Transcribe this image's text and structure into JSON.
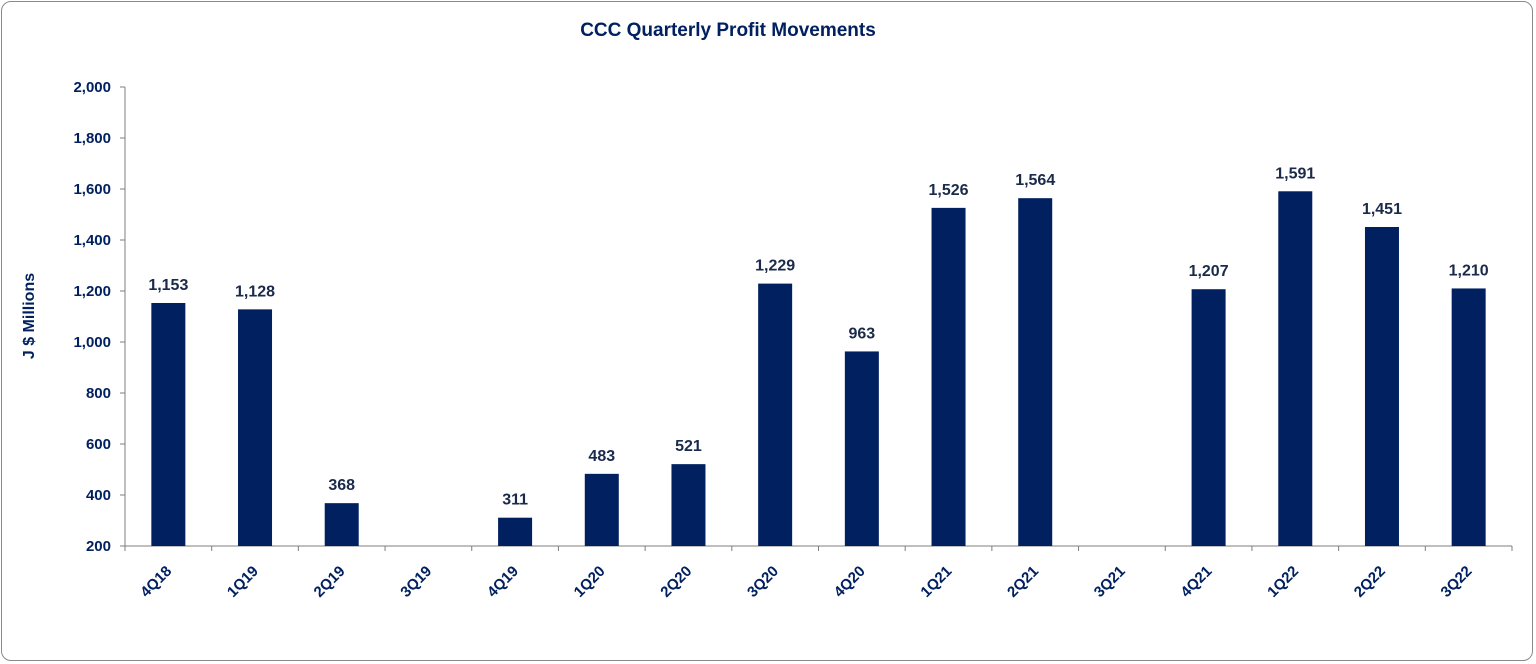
{
  "chart_data": {
    "type": "bar",
    "title": "CCC Quarterly Profit Movements",
    "xlabel": "",
    "ylabel": "J $ Millions",
    "ylim": [
      200,
      2000
    ],
    "yticks": [
      "2,000",
      "1,800",
      "1,600",
      "1,400",
      "1,200",
      "1,000",
      "800",
      "600",
      "400",
      "200"
    ],
    "ytick_values": [
      2000,
      1800,
      1600,
      1400,
      1200,
      1000,
      800,
      600,
      400,
      200
    ],
    "categories": [
      "4Q18",
      "1Q19",
      "2Q19",
      "3Q19",
      "4Q19",
      "1Q20",
      "2Q20",
      "3Q20",
      "4Q20",
      "1Q21",
      "2Q21",
      "3Q21",
      "4Q21",
      "1Q22",
      "2Q22",
      "3Q22"
    ],
    "values": [
      1153,
      1128,
      368,
      null,
      311,
      483,
      521,
      1229,
      963,
      1526,
      1564,
      null,
      1207,
      1591,
      1451,
      1210
    ],
    "value_labels": [
      "1,153",
      "1,128",
      "368",
      "",
      "311",
      "483",
      "521",
      "1,229",
      "963",
      "1,526",
      "1,564",
      "",
      "1,207",
      "1,591",
      "1,451",
      "1,210"
    ],
    "bar_color": "#002060",
    "grid": false,
    "legend": "none"
  }
}
